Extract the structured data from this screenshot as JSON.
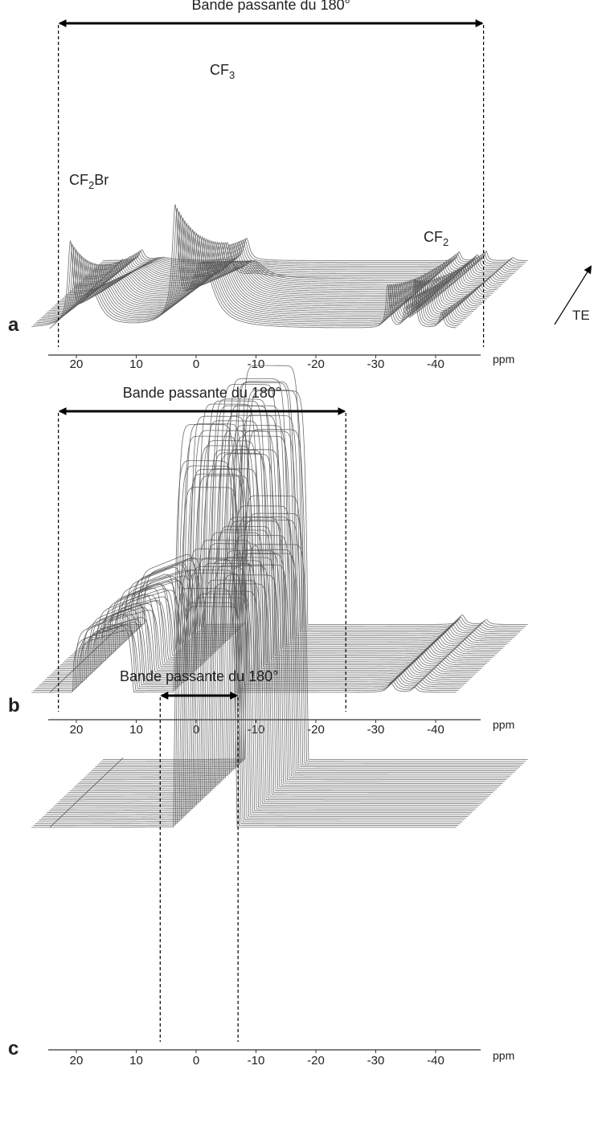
{
  "figure": {
    "band_label": "Bande passante du 180°",
    "unit_label": "ppm",
    "te_label": "TE",
    "colors": {
      "trace": "#555555",
      "axis": "#333333",
      "arrow": "#000000"
    }
  },
  "chart_data": [
    {
      "type": "line",
      "panel": "a",
      "xlabel": "ppm",
      "xlim": [
        25,
        -50
      ],
      "x_ticks": [
        20,
        10,
        0,
        -10,
        -20,
        -30,
        -40
      ],
      "tick_labels": [
        "20",
        "10",
        "0",
        "-10",
        "-20",
        "-30",
        "-40"
      ],
      "bandwidth_ppm": [
        23,
        -48
      ],
      "band_label": "Bande passante du 180°",
      "n_traces": 38,
      "peaks": [
        {
          "label": "CF",
          "sub": "2",
          "suffix": "Br",
          "ppm": 17.5
        },
        {
          "label": "CF",
          "sub": "3",
          "suffix": "",
          "ppm": 0
        },
        {
          "label": "CF",
          "sub": "2",
          "suffix": "",
          "ppm": -40
        }
      ],
      "te_label": "TE"
    },
    {
      "type": "line",
      "panel": "b",
      "xlabel": "ppm",
      "xlim": [
        25,
        -50
      ],
      "x_ticks": [
        20,
        10,
        0,
        -10,
        -20,
        -30,
        -40
      ],
      "tick_labels": [
        "20",
        "10",
        "0",
        "-10",
        "-20",
        "-30",
        "-40"
      ],
      "bandwidth_ppm": [
        23,
        -25
      ],
      "band_label": "Bande passante du 180°",
      "n_traces": 38
    },
    {
      "type": "line",
      "panel": "c",
      "xlabel": "ppm",
      "xlim": [
        25,
        -50
      ],
      "x_ticks": [
        20,
        10,
        0,
        -10,
        -20,
        -30,
        -40
      ],
      "tick_labels": [
        "20",
        "10",
        "0",
        "-10",
        "-20",
        "-30",
        "-40"
      ],
      "bandwidth_ppm": [
        6,
        -7
      ],
      "band_label": "Bande passante du 180°",
      "n_traces": 38
    }
  ]
}
